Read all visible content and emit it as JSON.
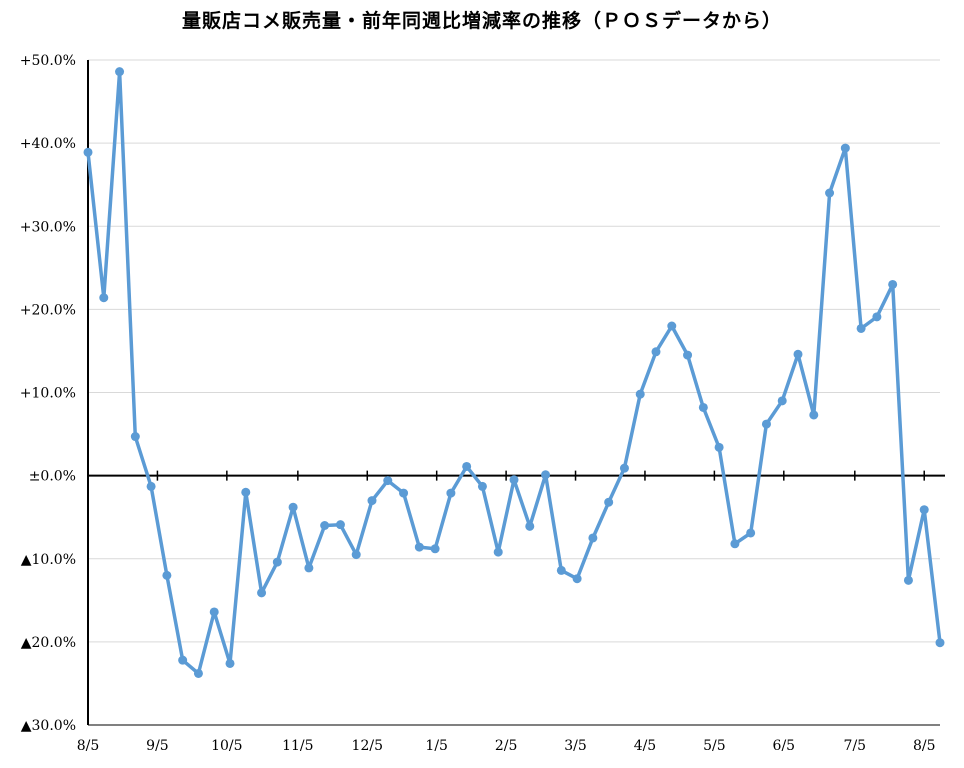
{
  "chart_data": {
    "type": "line",
    "title": "量販店コメ販売量・前年同週比増減率の推移（ＰＯＳデータから）",
    "xlabel": "",
    "ylabel": "",
    "ylim": [
      -30,
      50
    ],
    "yticks": [
      {
        "value": 50,
        "label": "+50.0%"
      },
      {
        "value": 40,
        "label": "+40.0%"
      },
      {
        "value": 30,
        "label": "+30.0%"
      },
      {
        "value": 20,
        "label": "+20.0%"
      },
      {
        "value": 10,
        "label": "+10.0%"
      },
      {
        "value": 0,
        "label": "±0.0%"
      },
      {
        "value": -10,
        "label": "▲10.0%"
      },
      {
        "value": -20,
        "label": "▲20.0%"
      },
      {
        "value": -30,
        "label": "▲30.0%"
      }
    ],
    "xticks": [
      {
        "index": 0,
        "label": "8/5"
      },
      {
        "index": 4.4,
        "label": "9/5"
      },
      {
        "index": 8.8,
        "label": "10/5"
      },
      {
        "index": 13.3,
        "label": "11/5"
      },
      {
        "index": 17.7,
        "label": "12/5"
      },
      {
        "index": 22.1,
        "label": "1/5"
      },
      {
        "index": 26.5,
        "label": "2/5"
      },
      {
        "index": 30.9,
        "label": "3/5"
      },
      {
        "index": 35.3,
        "label": "4/5"
      },
      {
        "index": 39.7,
        "label": "5/5"
      },
      {
        "index": 44.1,
        "label": "6/5"
      },
      {
        "index": 48.6,
        "label": "7/5"
      },
      {
        "index": 53.0,
        "label": "8/5"
      }
    ],
    "grid": true,
    "line_color": "#5b9bd5",
    "series": [
      {
        "values": [
          38.9,
          21.4,
          48.6,
          4.7,
          -1.3,
          -12.0,
          -22.2,
          -23.8,
          -16.4,
          -22.6,
          -2.0,
          -14.1,
          -10.4,
          -3.8,
          -11.1,
          -6.0,
          -5.9,
          -9.5,
          -3.0,
          -0.6,
          -2.1,
          -8.6,
          -8.8,
          -2.1,
          1.1,
          -1.3,
          -9.2,
          -0.5,
          -6.1,
          0.1,
          -11.4,
          -12.4,
          -7.5,
          -3.2,
          0.9,
          9.8,
          14.9,
          18.0,
          14.5,
          8.2,
          3.4,
          -8.2,
          -6.9,
          6.2,
          9.0,
          14.6,
          7.3,
          34.0,
          39.4,
          17.7,
          19.1,
          23.0,
          -12.6,
          -4.1,
          -20.1
        ]
      }
    ]
  }
}
